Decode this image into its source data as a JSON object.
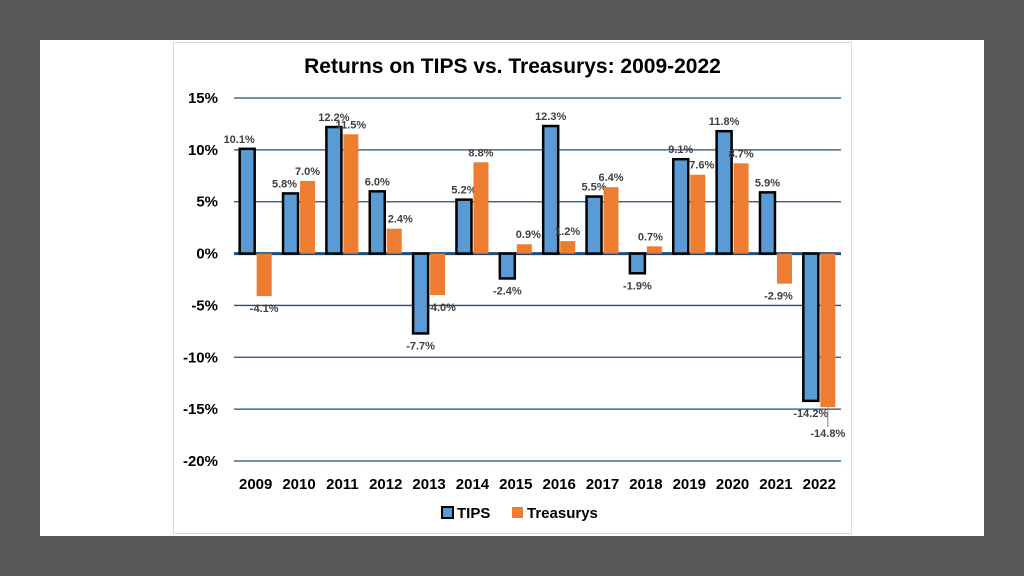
{
  "chart_data": {
    "type": "bar",
    "title": "Returns on TIPS vs. Treasurys: 2009-2022",
    "xlabel": "",
    "ylabel": "",
    "categories": [
      "2009",
      "2010",
      "2011",
      "2012",
      "2013",
      "2014",
      "2015",
      "2016",
      "2017",
      "2018",
      "2019",
      "2020",
      "2021",
      "2022"
    ],
    "series": [
      {
        "name": "TIPS",
        "color": "#5b9bd5",
        "values": [
          10.1,
          5.8,
          12.2,
          6.0,
          -7.7,
          5.2,
          -2.4,
          12.3,
          5.5,
          -1.9,
          9.1,
          11.8,
          5.9,
          -14.2
        ],
        "labels": [
          "10.1%",
          "5.8%",
          "12.2%",
          "6.0%",
          "-7.7%",
          "5.2%",
          "-2.4%",
          "12.3%",
          "5.5%",
          "-1.9%",
          "9.1%",
          "11.8%",
          "5.9%",
          "-14.2%"
        ]
      },
      {
        "name": "Treasurys",
        "color": "#ed7d31",
        "values": [
          -4.1,
          7.0,
          11.5,
          2.4,
          -4.0,
          8.8,
          0.9,
          1.2,
          6.4,
          0.7,
          7.6,
          8.7,
          -2.9,
          -14.8
        ],
        "labels": [
          "-4.1%",
          "7.0%",
          "11.5%",
          "2.4%",
          "-4.0%",
          "8.8%",
          "0.9%",
          "1.2%",
          "6.4%",
          "0.7%",
          "7.6%",
          "8.7%",
          "-2.9%",
          "-14.8%"
        ]
      }
    ],
    "ylim": [
      -20,
      15
    ],
    "yticks": [
      15,
      10,
      5,
      0,
      -5,
      -10,
      -15,
      -20
    ],
    "ytick_labels": [
      "15%",
      "10%",
      "5%",
      "0%",
      "-5%",
      "-10%",
      "-15%",
      "-20%"
    ],
    "grid": true,
    "legend_position": "bottom"
  }
}
